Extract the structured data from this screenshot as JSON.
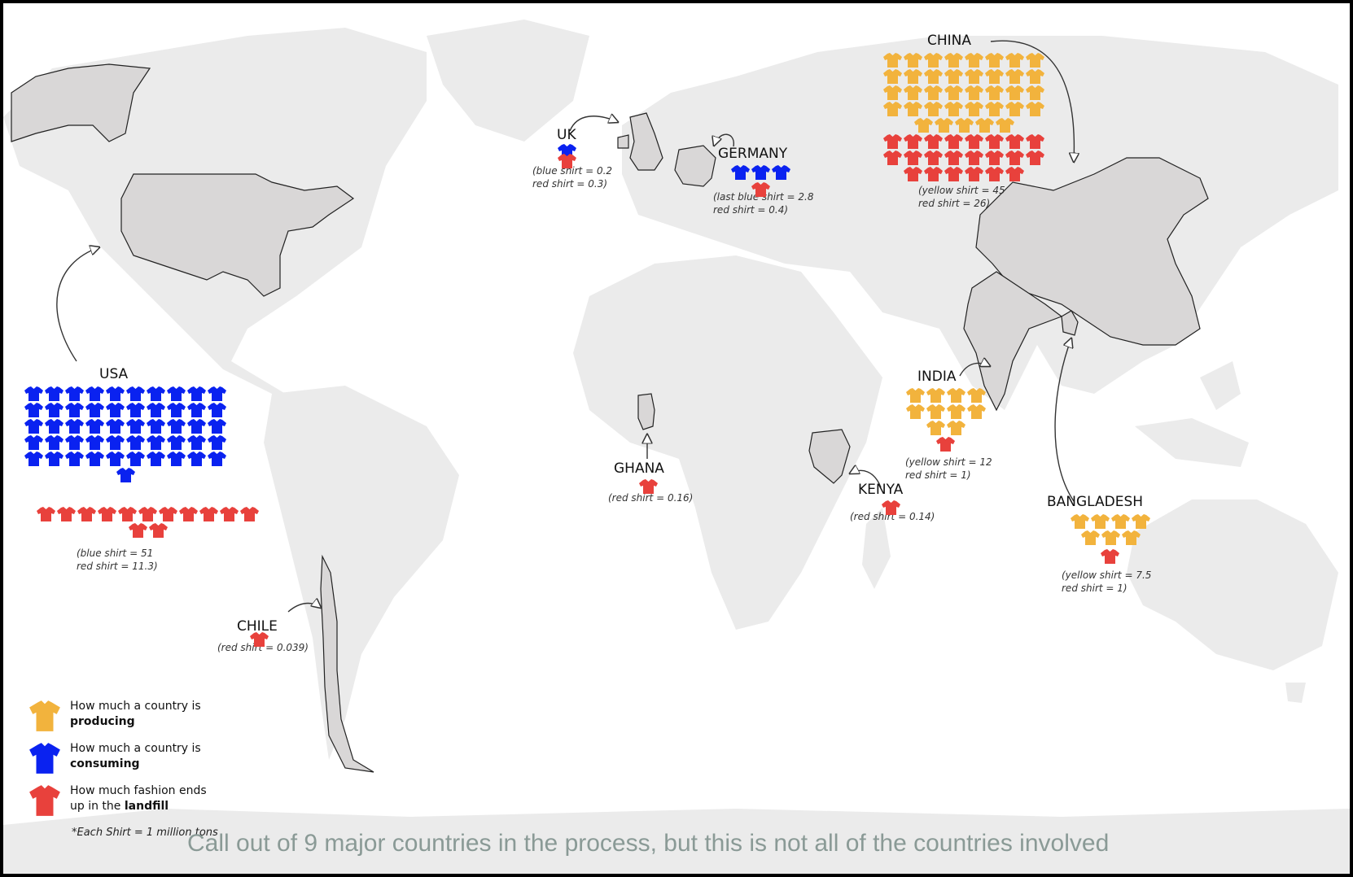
{
  "colors": {
    "producing": "#f2b33d",
    "consuming": "#0a22f0",
    "landfill": "#e8413c",
    "land": "#ebebeb",
    "highlight": "#d9d7d7"
  },
  "countries": [
    {
      "id": "usa",
      "name": "USA",
      "line1": "(blue shirt = 51",
      "line2": "red shirt = 11.3)"
    },
    {
      "id": "uk",
      "name": "UK",
      "line1": "(blue shirt = 0.2",
      "line2": "red shirt = 0.3)"
    },
    {
      "id": "germany",
      "name": "GERMANY",
      "line1": "(last blue shirt = 2.8",
      "line2": "red shirt = 0.4)"
    },
    {
      "id": "china",
      "name": "CHINA",
      "line1": "(yellow shirt = 45",
      "line2": "red shirt = 26)"
    },
    {
      "id": "india",
      "name": "INDIA",
      "line1": "(yellow shirt = 12",
      "line2": "red shirt = 1)"
    },
    {
      "id": "bangladesh",
      "name": "BANGLADESH",
      "line1": "(yellow shirt = 7.5",
      "line2": "red shirt = 1)"
    },
    {
      "id": "ghana",
      "name": "GHANA",
      "line1": "(red shirt = 0.16)",
      "line2": ""
    },
    {
      "id": "kenya",
      "name": "KENYA",
      "line1": "(red shirt = 0.14)",
      "line2": ""
    },
    {
      "id": "chile",
      "name": "CHILE",
      "line1": "(red shirt = 0.039)",
      "line2": ""
    }
  ],
  "legend": [
    {
      "icon": "yellow-shirt-icon",
      "pre": "How much a country is",
      "bold": "producing"
    },
    {
      "icon": "blue-shirt-icon",
      "pre": "How much a country is",
      "bold": "consuming"
    },
    {
      "icon": "red-shirt-icon",
      "pre": "How much fashion ends up in the",
      "bold": "landfill"
    }
  ],
  "unit_note": "*Each Shirt = 1 million tons",
  "caption": "Call out of 9 major countries in the process, but this is not all of the countries involved"
}
